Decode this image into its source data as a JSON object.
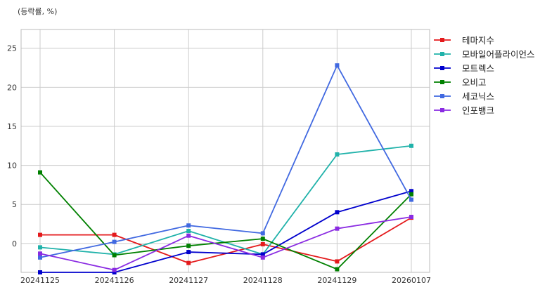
{
  "chart_data": {
    "type": "line",
    "unit_label": "(등락률, %)",
    "title": "",
    "xlabel": "",
    "ylabel": "",
    "categories": [
      "20241125",
      "20241126",
      "20241127",
      "20241128",
      "20241129",
      "20260107"
    ],
    "ylim": [
      -3.7,
      27.4
    ],
    "yticks": [
      0,
      5,
      10,
      15,
      20,
      25
    ],
    "grid": true,
    "legend_position": "right-top",
    "series": [
      {
        "name": "테마지수",
        "color": "#e41a1c",
        "values": [
          1.1,
          1.1,
          -2.5,
          -0.1,
          -2.3,
          3.3
        ]
      },
      {
        "name": "모바일어플라이언스",
        "color": "#20b2aa",
        "values": [
          -0.5,
          -1.4,
          1.6,
          -1.4,
          11.4,
          12.5
        ]
      },
      {
        "name": "모트렉스",
        "color": "#0000cd",
        "values": [
          -3.7,
          -3.7,
          -1.1,
          -1.4,
          4.0,
          6.7
        ]
      },
      {
        "name": "오비고",
        "color": "#008000",
        "values": [
          9.1,
          -1.5,
          -0.3,
          0.6,
          -3.3,
          6.3
        ]
      },
      {
        "name": "세코닉스",
        "color": "#4169e1",
        "values": [
          -1.8,
          0.2,
          2.3,
          1.3,
          22.8,
          5.6
        ]
      },
      {
        "name": "인포뱅크",
        "color": "#8a2be2",
        "values": [
          -1.3,
          -3.4,
          1.0,
          -1.8,
          1.9,
          3.4
        ]
      }
    ]
  }
}
